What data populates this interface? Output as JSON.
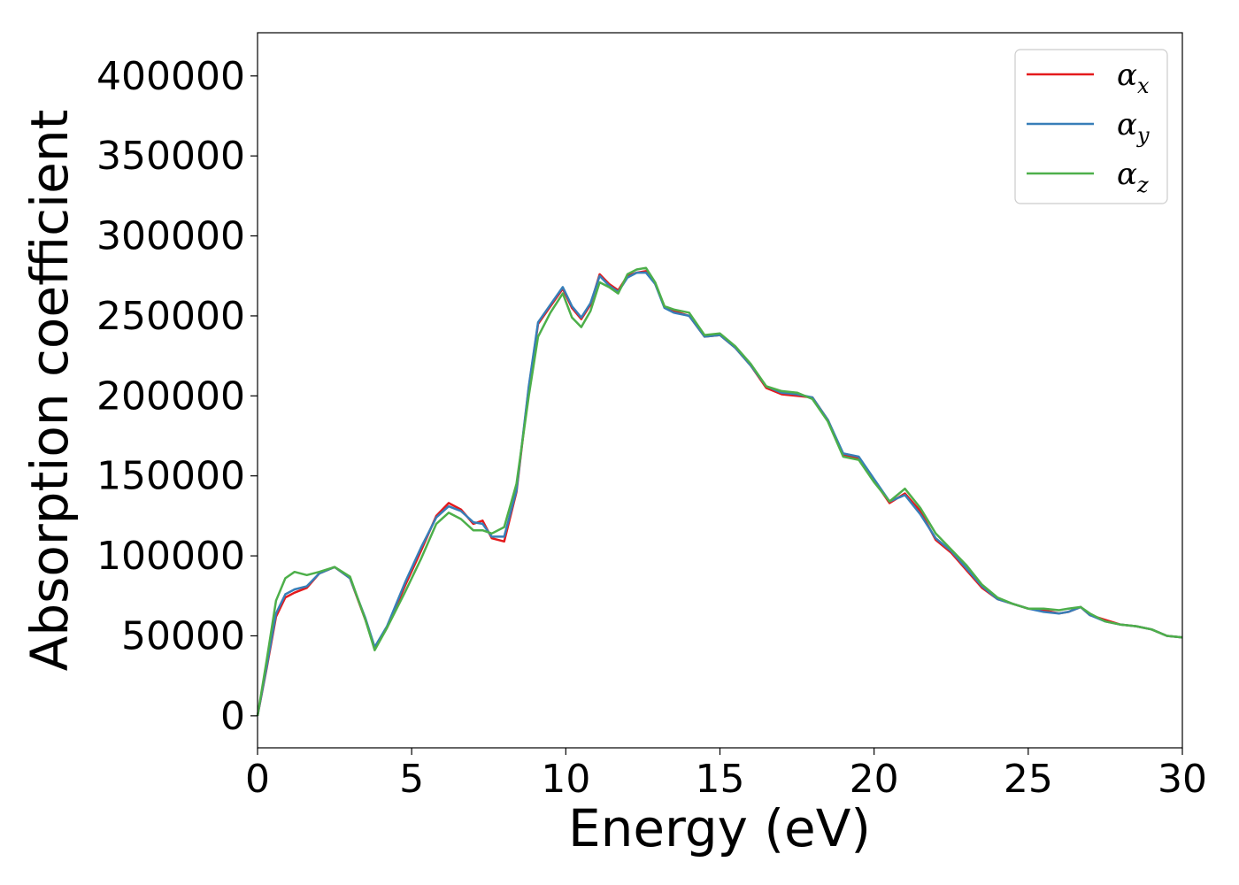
{
  "chart_data": {
    "type": "line",
    "xlabel": "Energy (eV)",
    "ylabel": "Absorption coefficient",
    "xlim": [
      0,
      30
    ],
    "ylim": [
      -20000,
      427000
    ],
    "x_ticks": [
      "0",
      "5",
      "10",
      "15",
      "20",
      "25",
      "30"
    ],
    "y_ticks": [
      "0",
      "50000",
      "100000",
      "150000",
      "200000",
      "250000",
      "300000",
      "350000",
      "400000"
    ],
    "grid": false,
    "legend_position": "top-right",
    "series": [
      {
        "name": "αx",
        "legend_symbol": "α",
        "legend_sub": "x",
        "color": "#e41a1c",
        "x": [
          0,
          0.3,
          0.6,
          0.9,
          1.2,
          1.6,
          2.0,
          2.5,
          3.0,
          3.5,
          3.8,
          4.2,
          4.8,
          5.3,
          5.8,
          6.2,
          6.6,
          7.0,
          7.3,
          7.6,
          8.0,
          8.4,
          8.8,
          9.1,
          9.5,
          9.9,
          10.2,
          10.5,
          10.8,
          11.1,
          11.4,
          11.7,
          12.0,
          12.3,
          12.6,
          12.9,
          13.2,
          13.5,
          14.0,
          14.5,
          15.0,
          15.5,
          16.0,
          16.5,
          17.0,
          17.5,
          18.0,
          18.5,
          19.0,
          19.5,
          20.0,
          20.5,
          21.0,
          21.5,
          22.0,
          22.5,
          23.0,
          23.5,
          24.0,
          24.5,
          25.0,
          25.5,
          26.0,
          26.3,
          26.7,
          27.0,
          27.5,
          28.0,
          28.5,
          29.0,
          29.5,
          30.0
        ],
        "values": [
          0,
          30000,
          62000,
          74000,
          77000,
          80000,
          89000,
          93000,
          86000,
          60000,
          42000,
          55000,
          82000,
          103000,
          125000,
          133000,
          129000,
          120000,
          122000,
          111000,
          109000,
          140000,
          205000,
          245000,
          256000,
          267000,
          255000,
          248000,
          257000,
          276000,
          270000,
          266000,
          275000,
          277000,
          278000,
          270000,
          256000,
          253000,
          250000,
          237000,
          238000,
          230000,
          219000,
          205000,
          201000,
          200000,
          199000,
          185000,
          163000,
          161000,
          147000,
          133000,
          139000,
          128000,
          110000,
          102000,
          91000,
          80000,
          73000,
          70000,
          67000,
          66000,
          64000,
          65000,
          68000,
          63000,
          60000,
          57000,
          56000,
          54000,
          50000,
          49000
        ]
      },
      {
        "name": "αy",
        "legend_symbol": "α",
        "legend_sub": "y",
        "color": "#377eb8",
        "x": [
          0,
          0.3,
          0.6,
          0.9,
          1.2,
          1.6,
          2.0,
          2.5,
          3.0,
          3.5,
          3.8,
          4.2,
          4.8,
          5.3,
          5.8,
          6.2,
          6.6,
          7.0,
          7.3,
          7.6,
          8.0,
          8.4,
          8.8,
          9.1,
          9.5,
          9.9,
          10.2,
          10.5,
          10.8,
          11.1,
          11.4,
          11.7,
          12.0,
          12.3,
          12.6,
          12.9,
          13.2,
          13.5,
          14.0,
          14.5,
          15.0,
          15.5,
          16.0,
          16.5,
          17.0,
          17.5,
          18.0,
          18.5,
          19.0,
          19.5,
          20.0,
          20.5,
          21.0,
          21.5,
          22.0,
          22.5,
          23.0,
          23.5,
          24.0,
          24.5,
          25.0,
          25.5,
          26.0,
          26.3,
          26.7,
          27.0,
          27.5,
          28.0,
          28.5,
          29.0,
          29.5,
          30.0
        ],
        "values": [
          0,
          31000,
          64000,
          76000,
          79000,
          81000,
          89000,
          93000,
          86000,
          61000,
          43000,
          56000,
          84000,
          105000,
          124000,
          131000,
          128000,
          121000,
          120000,
          112000,
          112000,
          141000,
          206000,
          246000,
          257000,
          268000,
          256000,
          249000,
          258000,
          275000,
          269000,
          265000,
          274000,
          277000,
          277000,
          270000,
          255000,
          252000,
          250000,
          237000,
          238000,
          230000,
          219000,
          206000,
          202000,
          201000,
          199000,
          185000,
          164000,
          162000,
          148000,
          134000,
          138000,
          126000,
          111000,
          103000,
          92000,
          81000,
          73000,
          70000,
          67000,
          65000,
          64000,
          65000,
          68000,
          63000,
          59000,
          57000,
          56000,
          54000,
          50000,
          49000
        ]
      },
      {
        "name": "αz",
        "legend_symbol": "α",
        "legend_sub": "z",
        "color": "#4daf4a",
        "x": [
          0,
          0.3,
          0.6,
          0.9,
          1.2,
          1.6,
          2.0,
          2.5,
          3.0,
          3.5,
          3.8,
          4.2,
          4.8,
          5.3,
          5.8,
          6.2,
          6.6,
          7.0,
          7.3,
          7.6,
          8.0,
          8.4,
          8.8,
          9.1,
          9.5,
          9.9,
          10.2,
          10.5,
          10.8,
          11.1,
          11.4,
          11.7,
          12.0,
          12.3,
          12.6,
          12.9,
          13.2,
          13.5,
          14.0,
          14.5,
          15.0,
          15.5,
          16.0,
          16.5,
          17.0,
          17.5,
          18.0,
          18.5,
          19.0,
          19.5,
          20.0,
          20.5,
          21.0,
          21.5,
          22.0,
          22.5,
          23.0,
          23.5,
          24.0,
          24.5,
          25.0,
          25.5,
          26.0,
          26.3,
          26.7,
          27.0,
          27.5,
          28.0,
          28.5,
          29.0,
          29.5,
          30.0
        ],
        "values": [
          0,
          35000,
          72000,
          86000,
          90000,
          88000,
          90000,
          93000,
          87000,
          60000,
          41000,
          55000,
          78000,
          98000,
          120000,
          127000,
          123000,
          116000,
          116000,
          114000,
          118000,
          145000,
          200000,
          237000,
          252000,
          264000,
          249000,
          243000,
          253000,
          271000,
          268000,
          264000,
          276000,
          279000,
          280000,
          271000,
          256000,
          254000,
          252000,
          238000,
          239000,
          231000,
          220000,
          206000,
          203000,
          202000,
          198000,
          184000,
          162000,
          160000,
          146000,
          134000,
          142000,
          130000,
          114000,
          104000,
          94000,
          82000,
          74000,
          70000,
          67000,
          67000,
          66000,
          67000,
          68000,
          64000,
          59000,
          57000,
          56000,
          54000,
          50000,
          49000
        ]
      }
    ]
  }
}
